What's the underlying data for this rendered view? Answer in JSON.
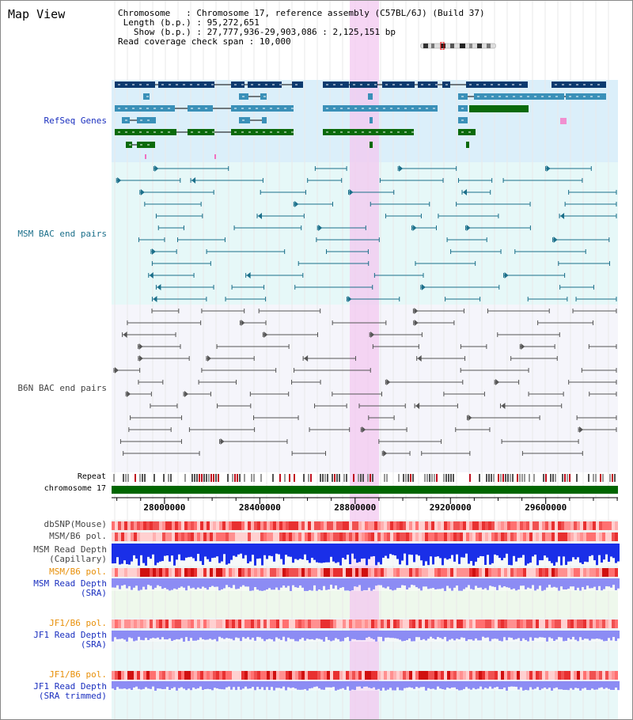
{
  "title": "Map View",
  "info": {
    "chromosome_key": "Chromosome",
    "chromosome_value": "Chromosome 17, reference assembly (C57BL/6J) (Build 37)",
    "length_key": "Length (b.p.)",
    "length_value": "95,272,651",
    "show_key": "Show (b.p.)",
    "show_value": "27,777,936-29,903,086 : 2,125,151 bp",
    "coverage_key": "Read coverage check span",
    "coverage_value": "10,000"
  },
  "tracks": {
    "refseq": "RefSeq Genes",
    "msm_bac": "MSM BAC end pairs",
    "b6n_bac": "B6N BAC end pairs",
    "repeat": "Repeat",
    "chromosome": "chromosome 17",
    "dbsnp": "dbSNP(Mouse)",
    "msm_b6_pol_1": "MSM/B6 pol.",
    "msm_depth_cap_1": "MSM Read Depth",
    "msm_depth_cap_2": "(Capillary)",
    "msm_b6_pol_2": "MSM/B6 pol.",
    "msm_depth_sra_1": "MSM Read Depth",
    "msm_depth_sra_2": "(SRA)",
    "jf1_b6_pol_1": "JF1/B6 pol.",
    "jf1_depth_sra_1": "JF1 Read Depth",
    "jf1_depth_sra_2": "(SRA)",
    "jf1_b6_pol_2": "JF1/B6 pol.",
    "jf1_depth_trim_1": "JF1 Read Depth",
    "jf1_depth_trim_2": "(SRA trimmed)"
  },
  "axis": {
    "ticks": [
      "28000000",
      "28400000",
      "28800000",
      "29200000",
      "29600000"
    ],
    "tick_values": [
      28000000,
      28400000,
      28800000,
      29200000,
      29600000
    ],
    "start": 27777936,
    "end": 29903086
  },
  "colors": {
    "refseq_bg": "#dbeffa",
    "msm_bg": "#e6f8f8",
    "b6n_bg": "#f5f5fb",
    "gene_dark": "#0b3a6e",
    "gene_mid": "#3a90b8",
    "gene_green": "#0a6a0a",
    "bac_msm": "#1b6f8a",
    "bac_b6n": "#555555",
    "highlight": "#f3c8f0",
    "label_blue": "#1a2fbf",
    "label_teal": "#1b6f8a",
    "label_gray": "#444444",
    "label_orange": "#e8900a"
  }
}
